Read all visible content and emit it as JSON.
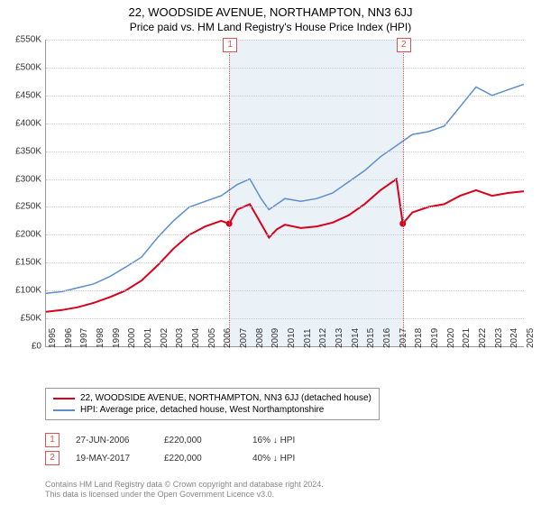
{
  "title": "22, WOODSIDE AVENUE, NORTHAMPTON, NN3 6JJ",
  "subtitle": "Price paid vs. HM Land Registry's House Price Index (HPI)",
  "chart": {
    "type": "line",
    "xlim": [
      1995,
      2025
    ],
    "ylim": [
      0,
      550000
    ],
    "ytick_step": 50000,
    "yticks": [
      "£0",
      "£50K",
      "£100K",
      "£150K",
      "£200K",
      "£250K",
      "£300K",
      "£350K",
      "£400K",
      "£450K",
      "£500K",
      "£550K"
    ],
    "xticks": [
      "1995",
      "1996",
      "1997",
      "1998",
      "1999",
      "2000",
      "2001",
      "2002",
      "2003",
      "2004",
      "2005",
      "2006",
      "2007",
      "2008",
      "2009",
      "2010",
      "2011",
      "2012",
      "2013",
      "2014",
      "2015",
      "2016",
      "2017",
      "2018",
      "2019",
      "2020",
      "2021",
      "2022",
      "2023",
      "2024",
      "2025"
    ],
    "grid_color": "#cccccc",
    "background_color": "#ffffff",
    "shaded_region": {
      "start": 2006.5,
      "end": 2017.4,
      "color": "#d6e4f0"
    },
    "series": [
      {
        "name": "property",
        "color": "#d9001c",
        "width": 2,
        "points": [
          [
            1995,
            62000
          ],
          [
            1996,
            65000
          ],
          [
            1997,
            70000
          ],
          [
            1998,
            78000
          ],
          [
            1999,
            88000
          ],
          [
            2000,
            100000
          ],
          [
            2001,
            118000
          ],
          [
            2002,
            145000
          ],
          [
            2003,
            175000
          ],
          [
            2004,
            200000
          ],
          [
            2005,
            215000
          ],
          [
            2006,
            225000
          ],
          [
            2006.5,
            220000
          ],
          [
            2007,
            245000
          ],
          [
            2007.8,
            255000
          ],
          [
            2008.5,
            220000
          ],
          [
            2009,
            195000
          ],
          [
            2009.5,
            210000
          ],
          [
            2010,
            218000
          ],
          [
            2011,
            212000
          ],
          [
            2012,
            215000
          ],
          [
            2013,
            222000
          ],
          [
            2014,
            235000
          ],
          [
            2015,
            255000
          ],
          [
            2016,
            280000
          ],
          [
            2017,
            300000
          ],
          [
            2017.4,
            220000
          ],
          [
            2018,
            240000
          ],
          [
            2019,
            250000
          ],
          [
            2020,
            255000
          ],
          [
            2021,
            270000
          ],
          [
            2022,
            280000
          ],
          [
            2023,
            270000
          ],
          [
            2024,
            275000
          ],
          [
            2025,
            278000
          ]
        ]
      },
      {
        "name": "hpi",
        "color": "#5b8fce",
        "width": 1.5,
        "points": [
          [
            1995,
            95000
          ],
          [
            1996,
            98000
          ],
          [
            1997,
            105000
          ],
          [
            1998,
            112000
          ],
          [
            1999,
            125000
          ],
          [
            2000,
            142000
          ],
          [
            2001,
            160000
          ],
          [
            2002,
            195000
          ],
          [
            2003,
            225000
          ],
          [
            2004,
            250000
          ],
          [
            2005,
            260000
          ],
          [
            2006,
            270000
          ],
          [
            2007,
            290000
          ],
          [
            2007.8,
            300000
          ],
          [
            2008.5,
            265000
          ],
          [
            2009,
            245000
          ],
          [
            2010,
            265000
          ],
          [
            2011,
            260000
          ],
          [
            2012,
            265000
          ],
          [
            2013,
            275000
          ],
          [
            2014,
            295000
          ],
          [
            2015,
            315000
          ],
          [
            2016,
            340000
          ],
          [
            2017,
            360000
          ],
          [
            2018,
            380000
          ],
          [
            2019,
            385000
          ],
          [
            2020,
            395000
          ],
          [
            2021,
            430000
          ],
          [
            2022,
            465000
          ],
          [
            2023,
            450000
          ],
          [
            2024,
            460000
          ],
          [
            2025,
            470000
          ]
        ]
      }
    ],
    "markers": [
      {
        "n": "1",
        "x": 2006.5,
        "y": 220000
      },
      {
        "n": "2",
        "x": 2017.4,
        "y": 220000
      }
    ]
  },
  "legend": {
    "items": [
      {
        "color": "#d9001c",
        "label": "22, WOODSIDE AVENUE, NORTHAMPTON, NN3 6JJ (detached house)"
      },
      {
        "color": "#5b8fce",
        "label": "HPI: Average price, detached house, West Northamptonshire"
      }
    ]
  },
  "transactions": [
    {
      "n": "1",
      "date": "27-JUN-2006",
      "price": "£220,000",
      "delta": "16% ↓ HPI"
    },
    {
      "n": "2",
      "date": "19-MAY-2017",
      "price": "£220,000",
      "delta": "40% ↓ HPI"
    }
  ],
  "footer": {
    "line1": "Contains HM Land Registry data © Crown copyright and database right 2024.",
    "line2": "This data is licensed under the Open Government Licence v3.0."
  }
}
